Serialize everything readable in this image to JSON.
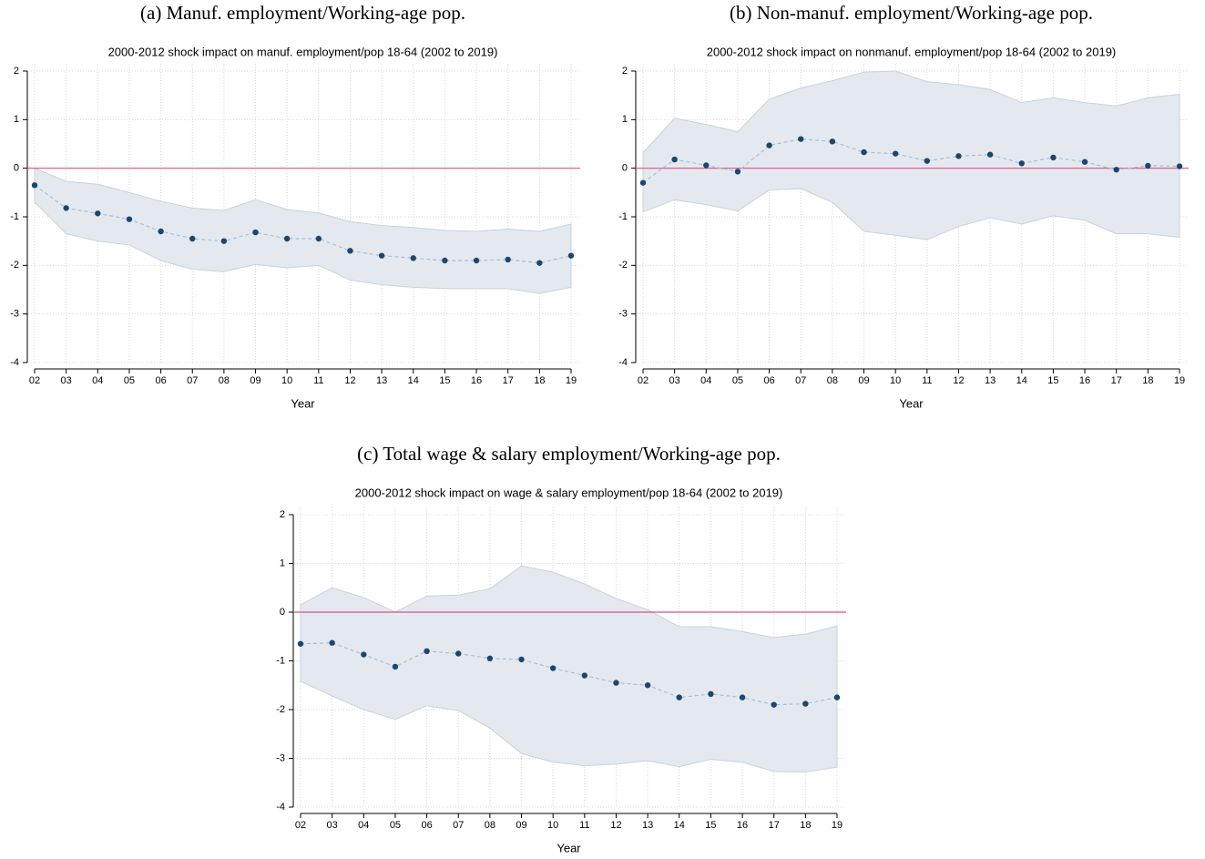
{
  "chart_data": [
    {
      "type": "line",
      "caption": "(a) Manuf. employment/Working-age pop.",
      "title": "2000-2012 shock impact on manuf. employment/pop 18-64 (2002 to 2019)",
      "xlabel": "Year",
      "categories": [
        "02",
        "03",
        "04",
        "05",
        "06",
        "07",
        "08",
        "09",
        "10",
        "11",
        "12",
        "13",
        "14",
        "15",
        "16",
        "17",
        "18",
        "19"
      ],
      "values": [
        -0.35,
        -0.82,
        -0.93,
        -1.05,
        -1.3,
        -1.45,
        -1.5,
        -1.32,
        -1.45,
        -1.45,
        -1.7,
        -1.8,
        -1.85,
        -1.9,
        -1.9,
        -1.88,
        -1.95,
        -1.8
      ],
      "upper": [
        0.0,
        -0.27,
        -0.33,
        -0.5,
        -0.68,
        -0.82,
        -0.87,
        -0.65,
        -0.85,
        -0.92,
        -1.1,
        -1.18,
        -1.22,
        -1.28,
        -1.3,
        -1.25,
        -1.3,
        -1.15
      ],
      "lower": [
        -0.7,
        -1.35,
        -1.5,
        -1.58,
        -1.9,
        -2.08,
        -2.13,
        -1.98,
        -2.05,
        -2.0,
        -2.3,
        -2.4,
        -2.45,
        -2.48,
        -2.48,
        -2.48,
        -2.58,
        -2.45
      ],
      "color": "#1a476f",
      "line_color": "#a9bfd4",
      "band_color": "#e4e9ef",
      "hline": 0,
      "hline_color": "#d9508a",
      "ylim": [
        -4,
        2
      ],
      "yticks": [
        -4,
        -3,
        -2,
        -1,
        0,
        1,
        2
      ],
      "grid": true
    },
    {
      "type": "line",
      "caption": "(b) Non-manuf. employment/Working-age pop.",
      "title": "2000-2012 shock impact on nonmanuf. employment/pop 18-64 (2002 to 2019)",
      "xlabel": "Year",
      "categories": [
        "02",
        "03",
        "04",
        "05",
        "06",
        "07",
        "08",
        "09",
        "10",
        "11",
        "12",
        "13",
        "14",
        "15",
        "16",
        "17",
        "18",
        "19"
      ],
      "values": [
        -0.3,
        0.18,
        0.06,
        -0.07,
        0.47,
        0.6,
        0.55,
        0.33,
        0.3,
        0.15,
        0.25,
        0.28,
        0.1,
        0.22,
        0.13,
        -0.03,
        0.05,
        0.04
      ],
      "upper": [
        0.32,
        1.03,
        0.9,
        0.75,
        1.42,
        1.65,
        1.8,
        1.98,
        2.0,
        1.78,
        1.72,
        1.62,
        1.35,
        1.45,
        1.35,
        1.28,
        1.45,
        1.52
      ],
      "lower": [
        -0.9,
        -0.65,
        -0.75,
        -0.88,
        -0.45,
        -0.42,
        -0.7,
        -1.3,
        -1.38,
        -1.47,
        -1.2,
        -1.02,
        -1.15,
        -0.98,
        -1.07,
        -1.35,
        -1.35,
        -1.42
      ],
      "color": "#1a476f",
      "line_color": "#a9bfd4",
      "band_color": "#e4e9ef",
      "hline": 0,
      "hline_color": "#d9508a",
      "ylim": [
        -4,
        2
      ],
      "yticks": [
        -4,
        -3,
        -2,
        -1,
        0,
        1,
        2
      ],
      "grid": true
    },
    {
      "type": "line",
      "caption": "(c) Total wage & salary employment/Working-age pop.",
      "title": "2000-2012 shock impact on wage & salary employment/pop 18-64 (2002 to 2019)",
      "xlabel": "Year",
      "categories": [
        "02",
        "03",
        "04",
        "05",
        "06",
        "07",
        "08",
        "09",
        "10",
        "11",
        "12",
        "13",
        "14",
        "15",
        "16",
        "17",
        "18",
        "19"
      ],
      "values": [
        -0.65,
        -0.63,
        -0.87,
        -1.12,
        -0.8,
        -0.85,
        -0.95,
        -0.97,
        -1.15,
        -1.3,
        -1.45,
        -1.5,
        -1.75,
        -1.68,
        -1.75,
        -1.9,
        -1.88,
        -1.75
      ],
      "upper": [
        0.15,
        0.5,
        0.3,
        0.0,
        0.33,
        0.35,
        0.48,
        0.95,
        0.82,
        0.58,
        0.28,
        0.05,
        -0.3,
        -0.3,
        -0.4,
        -0.52,
        -0.45,
        -0.28
      ],
      "lower": [
        -1.42,
        -1.72,
        -2.0,
        -2.2,
        -1.92,
        -2.02,
        -2.38,
        -2.9,
        -3.08,
        -3.15,
        -3.12,
        -3.05,
        -3.17,
        -3.02,
        -3.08,
        -3.27,
        -3.28,
        -3.18
      ],
      "color": "#1a476f",
      "line_color": "#a9bfd4",
      "band_color": "#e4e9ef",
      "hline": 0,
      "hline_color": "#d9508a",
      "ylim": [
        -4,
        2
      ],
      "yticks": [
        -4,
        -3,
        -2,
        -1,
        0,
        1,
        2
      ],
      "grid": true
    }
  ]
}
